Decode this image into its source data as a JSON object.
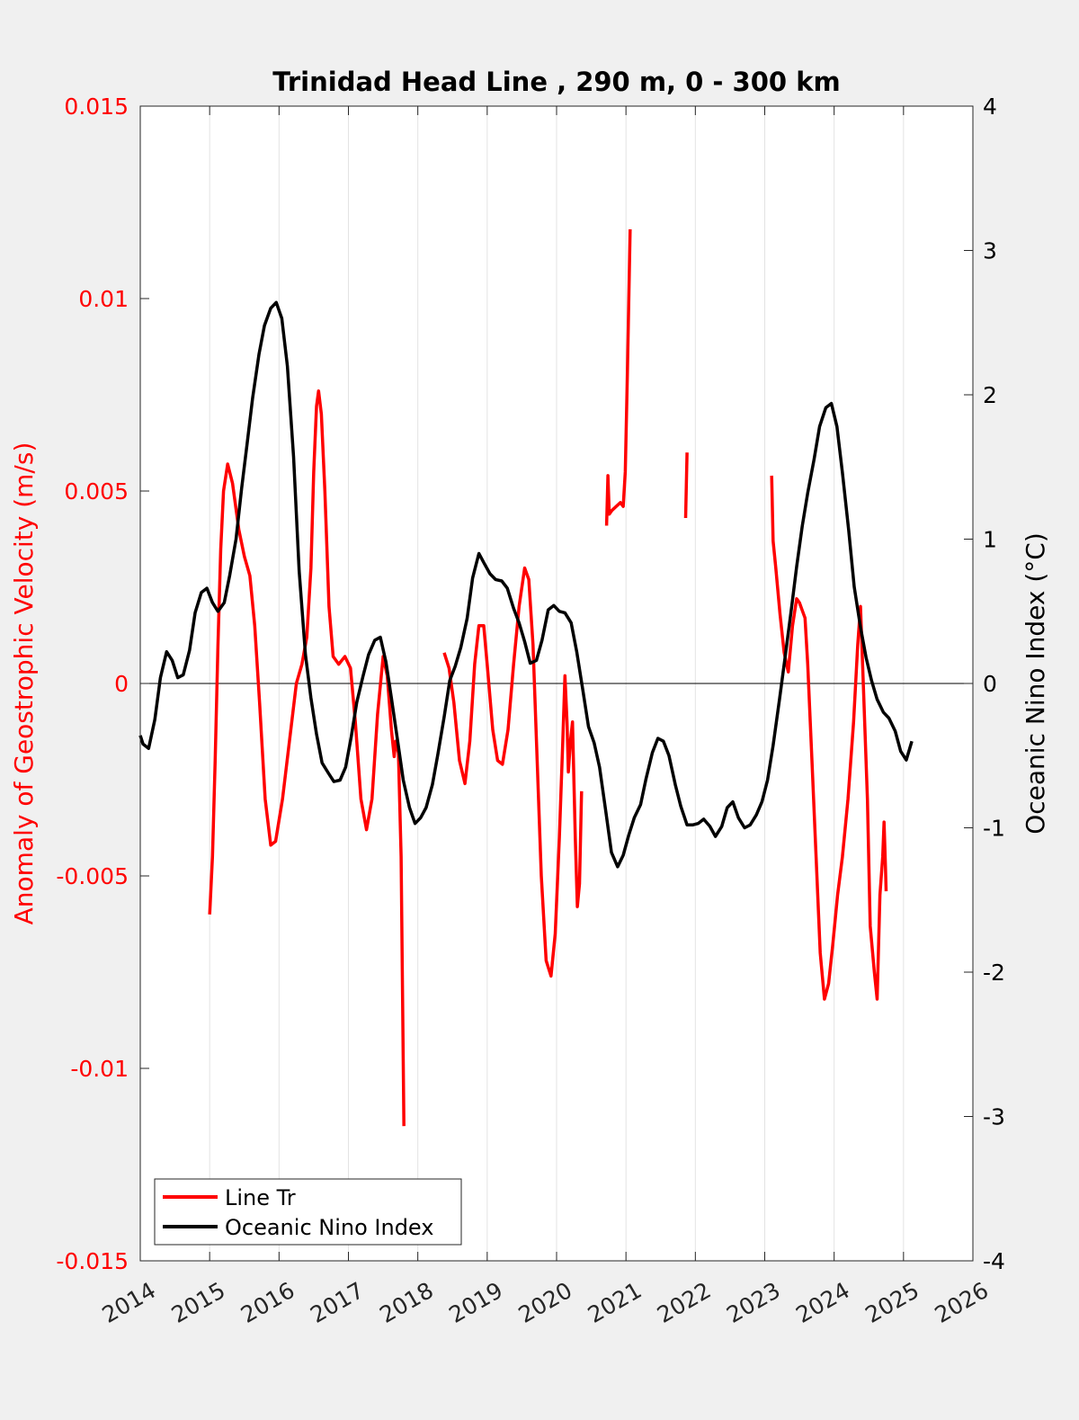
{
  "chart_data": {
    "type": "line",
    "title": "Trinidad Head Line , 290 m, 0 - 300 km",
    "ylabel_left": "Anomaly of Geostrophic Velocity (m/s)",
    "ylabel_right": "Oceanic Nino Index (°C)",
    "xlim": [
      2014,
      2026
    ],
    "ylim_left": [
      -0.015,
      0.015
    ],
    "ylim_right": [
      -4,
      4
    ],
    "x_ticks": [
      "2014",
      "2015",
      "2016",
      "2017",
      "2018",
      "2019",
      "2020",
      "2021",
      "2022",
      "2023",
      "2024",
      "2025",
      "2026"
    ],
    "y_left_ticks": [
      "-0.015",
      "-0.01",
      "-0.005",
      "0",
      "0.005",
      "0.01",
      "0.015"
    ],
    "y_right_ticks": [
      "-4",
      "-3",
      "-2",
      "-1",
      "0",
      "1",
      "2",
      "3",
      "4"
    ],
    "grid": "vertical",
    "legend_position": "bottom-left",
    "colors": {
      "left_axis": "#ff0000",
      "line_tr": "#ff0000",
      "oni": "#000000"
    },
    "series": [
      {
        "name": "Line Tr",
        "axis": "left",
        "color": "#ff0000",
        "segments": [
          [
            [
              2015.0,
              -0.006
            ],
            [
              2015.04,
              -0.0045
            ],
            [
              2015.08,
              -0.002
            ],
            [
              2015.12,
              0.001
            ],
            [
              2015.16,
              0.0035
            ],
            [
              2015.2,
              0.005
            ],
            [
              2015.26,
              0.0057
            ],
            [
              2015.33,
              0.0052
            ],
            [
              2015.42,
              0.004
            ],
            [
              2015.5,
              0.0033
            ],
            [
              2015.58,
              0.0028
            ],
            [
              2015.65,
              0.0015
            ],
            [
              2015.72,
              -0.0005
            ],
            [
              2015.8,
              -0.003
            ],
            [
              2015.88,
              -0.0042
            ],
            [
              2015.95,
              -0.0041
            ],
            [
              2016.05,
              -0.003
            ],
            [
              2016.15,
              -0.0015
            ],
            [
              2016.25,
              0.0
            ],
            [
              2016.33,
              0.0005
            ],
            [
              2016.4,
              0.0012
            ],
            [
              2016.46,
              0.003
            ],
            [
              2016.5,
              0.0055
            ],
            [
              2016.54,
              0.0072
            ],
            [
              2016.57,
              0.0076
            ],
            [
              2016.61,
              0.007
            ],
            [
              2016.66,
              0.005
            ],
            [
              2016.72,
              0.002
            ],
            [
              2016.78,
              0.0007
            ],
            [
              2016.86,
              0.0005
            ],
            [
              2016.95,
              0.0007
            ],
            [
              2017.03,
              0.0004
            ],
            [
              2017.1,
              -0.001
            ],
            [
              2017.18,
              -0.003
            ],
            [
              2017.26,
              -0.0038
            ],
            [
              2017.34,
              -0.003
            ],
            [
              2017.42,
              -0.0008
            ],
            [
              2017.5,
              0.0007
            ],
            [
              2017.56,
              0.0002
            ],
            [
              2017.62,
              -0.0012
            ],
            [
              2017.66,
              -0.0019
            ],
            [
              2017.68,
              -0.0015
            ],
            [
              2017.72,
              -0.0018
            ],
            [
              2017.76,
              -0.0045
            ],
            [
              2017.8,
              -0.0115
            ]
          ],
          [
            [
              2018.38,
              0.0008
            ],
            [
              2018.45,
              0.0004
            ],
            [
              2018.52,
              -0.0005
            ],
            [
              2018.6,
              -0.002
            ],
            [
              2018.68,
              -0.0026
            ],
            [
              2018.75,
              -0.0015
            ],
            [
              2018.82,
              0.0005
            ],
            [
              2018.88,
              0.0015
            ],
            [
              2018.95,
              0.0015
            ],
            [
              2019.0,
              0.0005
            ],
            [
              2019.08,
              -0.0012
            ],
            [
              2019.15,
              -0.002
            ],
            [
              2019.22,
              -0.0021
            ],
            [
              2019.3,
              -0.0012
            ],
            [
              2019.38,
              0.0005
            ],
            [
              2019.46,
              0.002
            ],
            [
              2019.54,
              0.003
            ],
            [
              2019.6,
              0.0027
            ],
            [
              2019.66,
              0.001
            ],
            [
              2019.72,
              -0.002
            ],
            [
              2019.78,
              -0.005
            ],
            [
              2019.85,
              -0.0072
            ],
            [
              2019.92,
              -0.0076
            ],
            [
              2019.98,
              -0.0065
            ],
            [
              2020.04,
              -0.004
            ],
            [
              2020.09,
              -0.0015
            ],
            [
              2020.12,
              0.0002
            ],
            [
              2020.15,
              -0.001
            ],
            [
              2020.17,
              -0.0023
            ],
            [
              2020.2,
              -0.0015
            ],
            [
              2020.23,
              -0.001
            ],
            [
              2020.27,
              -0.004
            ],
            [
              2020.3,
              -0.0058
            ],
            [
              2020.33,
              -0.0052
            ],
            [
              2020.36,
              -0.0028
            ]
          ],
          [
            [
              2020.72,
              0.0041
            ],
            [
              2020.74,
              0.0054
            ],
            [
              2020.76,
              0.0044
            ],
            [
              2020.8,
              0.0045
            ],
            [
              2020.86,
              0.0046
            ],
            [
              2020.92,
              0.0047
            ],
            [
              2020.96,
              0.0046
            ],
            [
              2020.99,
              0.0055
            ],
            [
              2021.02,
              0.008
            ],
            [
              2021.06,
              0.0118
            ]
          ],
          [
            [
              2021.86,
              0.0043
            ],
            [
              2021.88,
              0.006
            ]
          ],
          [
            [
              2023.1,
              0.0054
            ],
            [
              2023.12,
              0.0037
            ],
            [
              2023.16,
              0.003
            ],
            [
              2023.22,
              0.0018
            ],
            [
              2023.28,
              0.0008
            ],
            [
              2023.34,
              0.0003
            ],
            [
              2023.4,
              0.0015
            ],
            [
              2023.46,
              0.0022
            ],
            [
              2023.5,
              0.0021
            ],
            [
              2023.54,
              0.0019
            ],
            [
              2023.58,
              0.0017
            ],
            [
              2023.62,
              0.0005
            ],
            [
              2023.68,
              -0.002
            ],
            [
              2023.74,
              -0.0045
            ],
            [
              2023.8,
              -0.007
            ],
            [
              2023.86,
              -0.0082
            ],
            [
              2023.92,
              -0.0078
            ],
            [
              2023.98,
              -0.0068
            ],
            [
              2024.05,
              -0.0055
            ],
            [
              2024.12,
              -0.0045
            ],
            [
              2024.2,
              -0.003
            ],
            [
              2024.28,
              -0.001
            ],
            [
              2024.34,
              0.001
            ],
            [
              2024.38,
              0.002
            ],
            [
              2024.42,
              0.0
            ],
            [
              2024.48,
              -0.003
            ],
            [
              2024.52,
              -0.0063
            ],
            [
              2024.58,
              -0.0075
            ],
            [
              2024.62,
              -0.0082
            ],
            [
              2024.66,
              -0.0055
            ],
            [
              2024.7,
              -0.0045
            ],
            [
              2024.72,
              -0.0036
            ],
            [
              2024.74,
              -0.0048
            ],
            [
              2024.75,
              -0.0054
            ]
          ]
        ]
      },
      {
        "name": "Oceanic Nino Index",
        "axis": "right",
        "color": "#000000",
        "points": [
          [
            2014.0,
            -0.36
          ],
          [
            2014.04,
            -0.42
          ],
          [
            2014.12,
            -0.45
          ],
          [
            2014.21,
            -0.25
          ],
          [
            2014.29,
            0.04
          ],
          [
            2014.38,
            0.22
          ],
          [
            2014.46,
            0.16
          ],
          [
            2014.54,
            0.04
          ],
          [
            2014.62,
            0.06
          ],
          [
            2014.71,
            0.23
          ],
          [
            2014.79,
            0.49
          ],
          [
            2014.88,
            0.63
          ],
          [
            2014.96,
            0.66
          ],
          [
            2015.04,
            0.56
          ],
          [
            2015.12,
            0.5
          ],
          [
            2015.21,
            0.56
          ],
          [
            2015.29,
            0.75
          ],
          [
            2015.38,
            1.0
          ],
          [
            2015.46,
            1.35
          ],
          [
            2015.54,
            1.66
          ],
          [
            2015.62,
            1.98
          ],
          [
            2015.71,
            2.28
          ],
          [
            2015.79,
            2.48
          ],
          [
            2015.88,
            2.6
          ],
          [
            2015.96,
            2.64
          ],
          [
            2016.04,
            2.53
          ],
          [
            2016.12,
            2.2
          ],
          [
            2016.21,
            1.57
          ],
          [
            2016.29,
            0.78
          ],
          [
            2016.38,
            0.2
          ],
          [
            2016.46,
            -0.1
          ],
          [
            2016.54,
            -0.35
          ],
          [
            2016.62,
            -0.55
          ],
          [
            2016.71,
            -0.62
          ],
          [
            2016.79,
            -0.68
          ],
          [
            2016.88,
            -0.67
          ],
          [
            2016.96,
            -0.58
          ],
          [
            2017.04,
            -0.37
          ],
          [
            2017.12,
            -0.13
          ],
          [
            2017.21,
            0.05
          ],
          [
            2017.29,
            0.2
          ],
          [
            2017.38,
            0.3
          ],
          [
            2017.46,
            0.32
          ],
          [
            2017.54,
            0.15
          ],
          [
            2017.62,
            -0.1
          ],
          [
            2017.71,
            -0.4
          ],
          [
            2017.79,
            -0.67
          ],
          [
            2017.88,
            -0.86
          ],
          [
            2017.96,
            -0.97
          ],
          [
            2018.04,
            -0.93
          ],
          [
            2018.12,
            -0.86
          ],
          [
            2018.21,
            -0.7
          ],
          [
            2018.29,
            -0.49
          ],
          [
            2018.38,
            -0.23
          ],
          [
            2018.46,
            0.02
          ],
          [
            2018.54,
            0.12
          ],
          [
            2018.62,
            0.25
          ],
          [
            2018.71,
            0.45
          ],
          [
            2018.79,
            0.73
          ],
          [
            2018.88,
            0.9
          ],
          [
            2018.96,
            0.83
          ],
          [
            2019.04,
            0.76
          ],
          [
            2019.12,
            0.72
          ],
          [
            2019.21,
            0.71
          ],
          [
            2019.29,
            0.66
          ],
          [
            2019.38,
            0.52
          ],
          [
            2019.46,
            0.42
          ],
          [
            2019.54,
            0.29
          ],
          [
            2019.62,
            0.14
          ],
          [
            2019.71,
            0.16
          ],
          [
            2019.79,
            0.3
          ],
          [
            2019.88,
            0.51
          ],
          [
            2019.96,
            0.54
          ],
          [
            2020.04,
            0.5
          ],
          [
            2020.12,
            0.49
          ],
          [
            2020.21,
            0.42
          ],
          [
            2020.29,
            0.22
          ],
          [
            2020.38,
            -0.05
          ],
          [
            2020.46,
            -0.3
          ],
          [
            2020.54,
            -0.41
          ],
          [
            2020.62,
            -0.58
          ],
          [
            2020.71,
            -0.89
          ],
          [
            2020.79,
            -1.17
          ],
          [
            2020.88,
            -1.27
          ],
          [
            2020.96,
            -1.19
          ],
          [
            2021.04,
            -1.05
          ],
          [
            2021.12,
            -0.93
          ],
          [
            2021.21,
            -0.84
          ],
          [
            2021.29,
            -0.66
          ],
          [
            2021.38,
            -0.48
          ],
          [
            2021.46,
            -0.38
          ],
          [
            2021.54,
            -0.4
          ],
          [
            2021.62,
            -0.5
          ],
          [
            2021.71,
            -0.7
          ],
          [
            2021.79,
            -0.85
          ],
          [
            2021.88,
            -0.98
          ],
          [
            2021.96,
            -0.98
          ],
          [
            2022.04,
            -0.97
          ],
          [
            2022.12,
            -0.94
          ],
          [
            2022.21,
            -0.99
          ],
          [
            2022.29,
            -1.06
          ],
          [
            2022.38,
            -0.99
          ],
          [
            2022.46,
            -0.86
          ],
          [
            2022.54,
            -0.82
          ],
          [
            2022.62,
            -0.93
          ],
          [
            2022.71,
            -1.0
          ],
          [
            2022.79,
            -0.98
          ],
          [
            2022.88,
            -0.91
          ],
          [
            2022.96,
            -0.82
          ],
          [
            2023.04,
            -0.67
          ],
          [
            2023.12,
            -0.43
          ],
          [
            2023.21,
            -0.12
          ],
          [
            2023.29,
            0.17
          ],
          [
            2023.38,
            0.5
          ],
          [
            2023.46,
            0.81
          ],
          [
            2023.54,
            1.09
          ],
          [
            2023.62,
            1.32
          ],
          [
            2023.71,
            1.55
          ],
          [
            2023.79,
            1.78
          ],
          [
            2023.88,
            1.91
          ],
          [
            2023.96,
            1.94
          ],
          [
            2024.04,
            1.78
          ],
          [
            2024.12,
            1.46
          ],
          [
            2024.21,
            1.06
          ],
          [
            2024.29,
            0.67
          ],
          [
            2024.38,
            0.39
          ],
          [
            2024.46,
            0.18
          ],
          [
            2024.54,
            0.02
          ],
          [
            2024.62,
            -0.11
          ],
          [
            2024.71,
            -0.2
          ],
          [
            2024.79,
            -0.24
          ],
          [
            2024.88,
            -0.33
          ],
          [
            2024.96,
            -0.47
          ],
          [
            2025.04,
            -0.53
          ],
          [
            2025.12,
            -0.4
          ]
        ]
      }
    ]
  }
}
